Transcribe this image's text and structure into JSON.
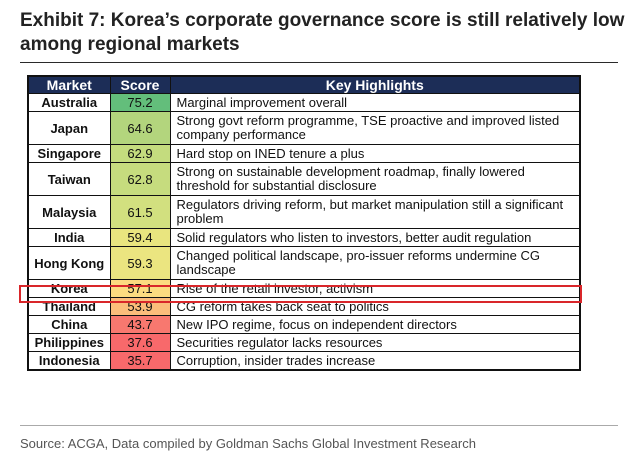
{
  "title": "Exhibit 7: Korea’s corporate governance score is still relatively low among regional markets",
  "table": {
    "headers": [
      "Market",
      "Score",
      "Key Highlights"
    ],
    "rows": [
      {
        "market": "Australia",
        "score": "75.2",
        "color": "#63be7b",
        "highlight": "Marginal improvement overall"
      },
      {
        "market": "Japan",
        "score": "64.6",
        "color": "#b3d57d",
        "highlight": "Strong govt reform programme, TSE proactive and improved listed company performance"
      },
      {
        "market": "Singapore",
        "score": "62.9",
        "color": "#c4dc7e",
        "highlight": "Hard stop on INED tenure a plus"
      },
      {
        "market": "Taiwan",
        "score": "62.8",
        "color": "#c6dc7e",
        "highlight": "Strong on sustainable development roadmap, finally lowered threshold for substantial disclosure"
      },
      {
        "market": "Malaysia",
        "score": "61.5",
        "color": "#d2e07f",
        "highlight": "Regulators driving reform, but market manipulation still a significant problem"
      },
      {
        "market": "India",
        "score": "59.4",
        "color": "#e9e57f",
        "highlight": "Solid regulators who listen to investors, better audit regulation"
      },
      {
        "market": "Hong Kong",
        "score": "59.3",
        "color": "#ebe580",
        "highlight": "Changed political landscape, pro-issuer reforms undermine CG landscape"
      },
      {
        "market": "Korea",
        "score": "57.1",
        "color": "#fcdb80",
        "highlight": "Rise of the retail investor, activism"
      },
      {
        "market": "Thailand",
        "score": "53.9",
        "color": "#fbbd7b",
        "highlight": "CG reform takes back seat to politics"
      },
      {
        "market": "China",
        "score": "43.7",
        "color": "#f8786f",
        "highlight": "New IPO regime, focus on independent directors"
      },
      {
        "market": "Philippines",
        "score": "37.6",
        "color": "#f8696b",
        "highlight": "Securities regulator lacks resources"
      },
      {
        "market": "Indonesia",
        "score": "35.7",
        "color": "#f8696b",
        "highlight": "Corruption, insider trades increase"
      }
    ]
  },
  "source": "Source: ACGA, Data compiled by Goldman Sachs Global Investment Research"
}
